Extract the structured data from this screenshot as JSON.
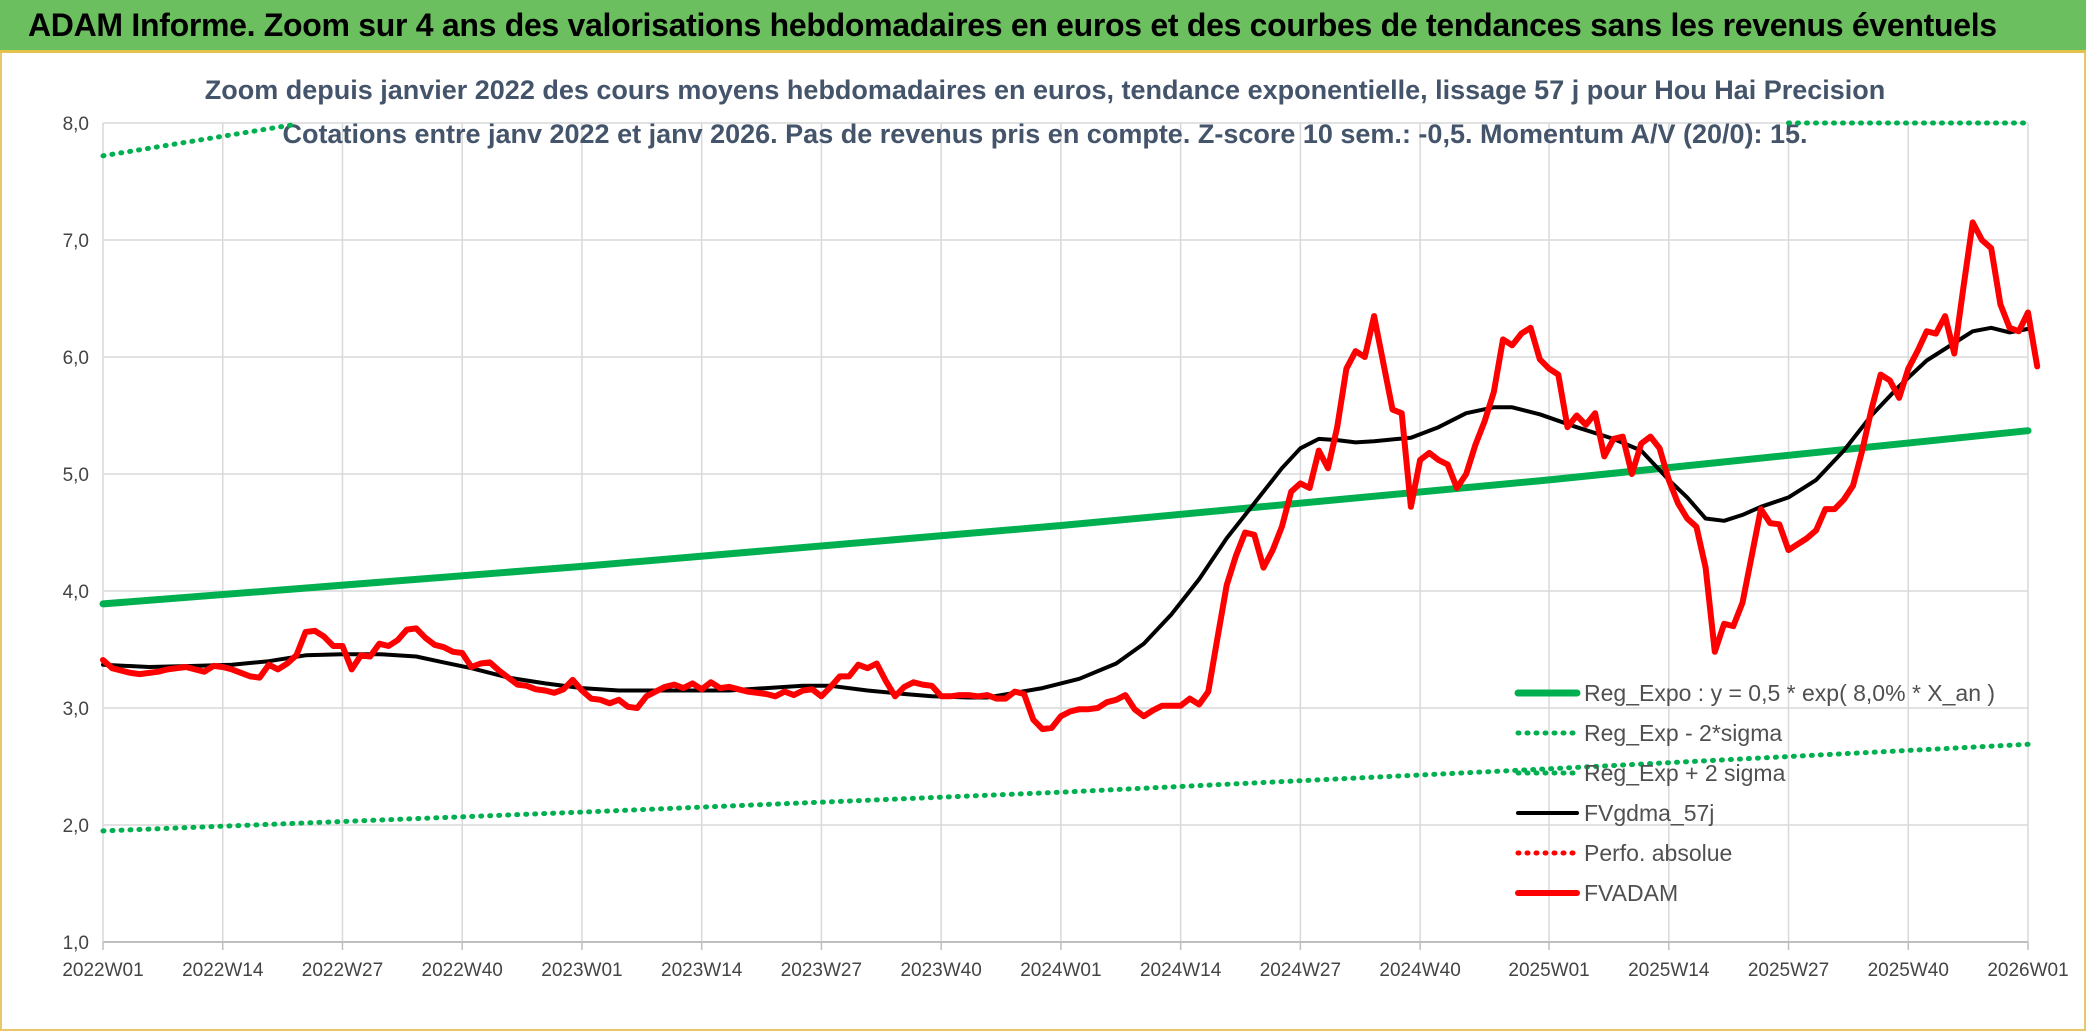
{
  "banner": {
    "title": "ADAM Informe. Zoom sur 4 ans des valorisations hebdomadaires en euros et des courbes de tendances sans les revenus éventuels"
  },
  "colors": {
    "green": "#00b050",
    "red": "#ff0000",
    "black": "#000000",
    "grid": "#d9d9d9",
    "banner": "#6bbf5e"
  },
  "chart_data": {
    "type": "line",
    "title": "Zoom depuis janvier 2022 des cours moyens hebdomadaires en euros, tendance exponentielle, lissage 57 j pour Hou Hai Precision",
    "subtitle": "Cotations entre janv 2022 et janv 2026. Pas de revenus pris en compte. Z-score 10 sem.: -0,5. Momentum A/V (20/0): 15.",
    "xlabel": "",
    "ylabel": "",
    "ylim": [
      1.0,
      8.0
    ],
    "y_ticks": [
      "1,0",
      "2,0",
      "3,0",
      "4,0",
      "5,0",
      "6,0",
      "7,0",
      "8,0"
    ],
    "x_range": [
      0,
      209
    ],
    "x_ticks": [
      {
        "week": 0,
        "label": "2022W01"
      },
      {
        "week": 13,
        "label": "2022W14"
      },
      {
        "week": 26,
        "label": "2022W27"
      },
      {
        "week": 39,
        "label": "2022W40"
      },
      {
        "week": 52,
        "label": "2023W01"
      },
      {
        "week": 65,
        "label": "2023W14"
      },
      {
        "week": 78,
        "label": "2023W27"
      },
      {
        "week": 91,
        "label": "2023W40"
      },
      {
        "week": 104,
        "label": "2024W01"
      },
      {
        "week": 117,
        "label": "2024W14"
      },
      {
        "week": 130,
        "label": "2024W27"
      },
      {
        "week": 143,
        "label": "2024W40"
      },
      {
        "week": 157,
        "label": "2025W01"
      },
      {
        "week": 170,
        "label": "2025W14"
      },
      {
        "week": 183,
        "label": "2025W27"
      },
      {
        "week": 196,
        "label": "2025W40"
      },
      {
        "week": 209,
        "label": "2026W01"
      }
    ],
    "series": [
      {
        "name": "Reg_Expo : y = 0,5 * exp( 8,0% *  X_an )",
        "style": "solid-green",
        "points": [
          [
            0,
            3.89
          ],
          [
            52,
            4.21
          ],
          [
            104,
            4.56
          ],
          [
            157,
            4.95
          ],
          [
            209,
            5.37
          ]
        ]
      },
      {
        "name": "Reg_Exp - 2*sigma",
        "style": "dotted-green",
        "points": [
          [
            0,
            1.95
          ],
          [
            52,
            2.11
          ],
          [
            104,
            2.28
          ],
          [
            157,
            2.48
          ],
          [
            209,
            2.69
          ]
        ]
      },
      {
        "name": "Reg_Exp + 2 sigma",
        "style": "dotted-green",
        "segments": [
          [
            [
              0,
              7.72
            ],
            [
              21,
              7.99
            ]
          ],
          [
            [
              183,
              8.0
            ],
            [
              209,
              8.0
            ]
          ]
        ]
      },
      {
        "name": "FVgdma_57j",
        "style": "solid-black",
        "points": [
          [
            0,
            3.37
          ],
          [
            5,
            3.35
          ],
          [
            10,
            3.36
          ],
          [
            14,
            3.37
          ],
          [
            18,
            3.4
          ],
          [
            22,
            3.45
          ],
          [
            26,
            3.46
          ],
          [
            30,
            3.46
          ],
          [
            34,
            3.44
          ],
          [
            37,
            3.39
          ],
          [
            40,
            3.34
          ],
          [
            44,
            3.26
          ],
          [
            48,
            3.21
          ],
          [
            52,
            3.17
          ],
          [
            56,
            3.15
          ],
          [
            62,
            3.15
          ],
          [
            68,
            3.15
          ],
          [
            72,
            3.17
          ],
          [
            76,
            3.19
          ],
          [
            79,
            3.19
          ],
          [
            83,
            3.15
          ],
          [
            87,
            3.12
          ],
          [
            90,
            3.1
          ],
          [
            94,
            3.09
          ],
          [
            96,
            3.09
          ],
          [
            99,
            3.13
          ],
          [
            102,
            3.17
          ],
          [
            106,
            3.25
          ],
          [
            110,
            3.38
          ],
          [
            113,
            3.55
          ],
          [
            116,
            3.8
          ],
          [
            119,
            4.1
          ],
          [
            122,
            4.45
          ],
          [
            125,
            4.75
          ],
          [
            128,
            5.05
          ],
          [
            130,
            5.22
          ],
          [
            132,
            5.3
          ],
          [
            134,
            5.29
          ],
          [
            136,
            5.27
          ],
          [
            138,
            5.28
          ],
          [
            142,
            5.31
          ],
          [
            145,
            5.4
          ],
          [
            148,
            5.52
          ],
          [
            151,
            5.57
          ],
          [
            153,
            5.57
          ],
          [
            156,
            5.51
          ],
          [
            160,
            5.4
          ],
          [
            164,
            5.3
          ],
          [
            167,
            5.2
          ],
          [
            170,
            4.95
          ],
          [
            172,
            4.8
          ],
          [
            174,
            4.62
          ],
          [
            176,
            4.6
          ],
          [
            178,
            4.65
          ],
          [
            180,
            4.72
          ],
          [
            183,
            4.8
          ],
          [
            186,
            4.95
          ],
          [
            189,
            5.2
          ],
          [
            192,
            5.5
          ],
          [
            195,
            5.75
          ],
          [
            198,
            5.97
          ],
          [
            201,
            6.12
          ],
          [
            203,
            6.22
          ],
          [
            205,
            6.25
          ],
          [
            207,
            6.21
          ],
          [
            209,
            6.24
          ]
        ]
      },
      {
        "name": "Perfo. absolue",
        "style": "dotted-red",
        "points": []
      },
      {
        "name": "FVADAM",
        "style": "solid-red",
        "points": [
          [
            0,
            3.41
          ],
          [
            1,
            3.34
          ],
          [
            2,
            3.32
          ],
          [
            3,
            3.3
          ],
          [
            4,
            3.29
          ],
          [
            5,
            3.3
          ],
          [
            6,
            3.31
          ],
          [
            7,
            3.33
          ],
          [
            8,
            3.34
          ],
          [
            9,
            3.35
          ],
          [
            10,
            3.33
          ],
          [
            11,
            3.31
          ],
          [
            12,
            3.36
          ],
          [
            13,
            3.35
          ],
          [
            14,
            3.33
          ],
          [
            15,
            3.3
          ],
          [
            16,
            3.27
          ],
          [
            17,
            3.26
          ],
          [
            18,
            3.37
          ],
          [
            19,
            3.33
          ],
          [
            20,
            3.38
          ],
          [
            21,
            3.45
          ],
          [
            22,
            3.65
          ],
          [
            23,
            3.66
          ],
          [
            24,
            3.61
          ],
          [
            25,
            3.53
          ],
          [
            26,
            3.53
          ],
          [
            27,
            3.33
          ],
          [
            28,
            3.45
          ],
          [
            29,
            3.44
          ],
          [
            30,
            3.55
          ],
          [
            31,
            3.53
          ],
          [
            32,
            3.58
          ],
          [
            33,
            3.67
          ],
          [
            34,
            3.68
          ],
          [
            35,
            3.6
          ],
          [
            36,
            3.54
          ],
          [
            37,
            3.52
          ],
          [
            38,
            3.48
          ],
          [
            39,
            3.47
          ],
          [
            40,
            3.35
          ],
          [
            41,
            3.38
          ],
          [
            42,
            3.39
          ],
          [
            43,
            3.32
          ],
          [
            44,
            3.26
          ],
          [
            45,
            3.2
          ],
          [
            46,
            3.19
          ],
          [
            47,
            3.16
          ],
          [
            48,
            3.15
          ],
          [
            49,
            3.13
          ],
          [
            50,
            3.16
          ],
          [
            51,
            3.24
          ],
          [
            52,
            3.15
          ],
          [
            53,
            3.08
          ],
          [
            54,
            3.07
          ],
          [
            55,
            3.04
          ],
          [
            56,
            3.07
          ],
          [
            57,
            3.01
          ],
          [
            58,
            3.0
          ],
          [
            59,
            3.1
          ],
          [
            60,
            3.14
          ],
          [
            61,
            3.18
          ],
          [
            62,
            3.2
          ],
          [
            63,
            3.17
          ],
          [
            64,
            3.21
          ],
          [
            65,
            3.16
          ],
          [
            66,
            3.22
          ],
          [
            67,
            3.17
          ],
          [
            68,
            3.18
          ],
          [
            69,
            3.16
          ],
          [
            70,
            3.14
          ],
          [
            71,
            3.13
          ],
          [
            72,
            3.12
          ],
          [
            73,
            3.1
          ],
          [
            74,
            3.14
          ],
          [
            75,
            3.11
          ],
          [
            76,
            3.15
          ],
          [
            77,
            3.16
          ],
          [
            78,
            3.1
          ],
          [
            79,
            3.18
          ],
          [
            80,
            3.27
          ],
          [
            81,
            3.27
          ],
          [
            82,
            3.37
          ],
          [
            83,
            3.34
          ],
          [
            84,
            3.38
          ],
          [
            85,
            3.23
          ],
          [
            86,
            3.1
          ],
          [
            87,
            3.18
          ],
          [
            88,
            3.22
          ],
          [
            89,
            3.2
          ],
          [
            90,
            3.19
          ],
          [
            91,
            3.1
          ],
          [
            92,
            3.1
          ],
          [
            93,
            3.11
          ],
          [
            94,
            3.11
          ],
          [
            95,
            3.1
          ],
          [
            96,
            3.11
          ],
          [
            97,
            3.08
          ],
          [
            98,
            3.08
          ],
          [
            99,
            3.14
          ],
          [
            100,
            3.12
          ],
          [
            101,
            2.9
          ],
          [
            102,
            2.82
          ],
          [
            103,
            2.83
          ],
          [
            104,
            2.93
          ],
          [
            105,
            2.97
          ],
          [
            106,
            2.99
          ],
          [
            107,
            2.99
          ],
          [
            108,
            3.0
          ],
          [
            109,
            3.05
          ],
          [
            110,
            3.07
          ],
          [
            111,
            3.11
          ],
          [
            112,
            2.99
          ],
          [
            113,
            2.93
          ],
          [
            114,
            2.98
          ],
          [
            115,
            3.02
          ],
          [
            116,
            3.02
          ],
          [
            117,
            3.02
          ],
          [
            118,
            3.08
          ],
          [
            119,
            3.03
          ],
          [
            120,
            3.14
          ],
          [
            121,
            3.6
          ],
          [
            122,
            4.05
          ],
          [
            123,
            4.3
          ],
          [
            124,
            4.5
          ],
          [
            125,
            4.48
          ],
          [
            126,
            4.2
          ],
          [
            127,
            4.35
          ],
          [
            128,
            4.55
          ],
          [
            129,
            4.85
          ],
          [
            130,
            4.92
          ],
          [
            131,
            4.88
          ],
          [
            132,
            5.2
          ],
          [
            133,
            5.05
          ],
          [
            134,
            5.4
          ],
          [
            135,
            5.9
          ],
          [
            136,
            6.05
          ],
          [
            137,
            6.0
          ],
          [
            138,
            6.35
          ],
          [
            139,
            5.95
          ],
          [
            140,
            5.55
          ],
          [
            141,
            5.52
          ],
          [
            142,
            4.72
          ],
          [
            143,
            5.12
          ],
          [
            144,
            5.18
          ],
          [
            145,
            5.12
          ],
          [
            146,
            5.08
          ],
          [
            147,
            4.88
          ],
          [
            148,
            5.0
          ],
          [
            149,
            5.25
          ],
          [
            150,
            5.45
          ],
          [
            151,
            5.7
          ],
          [
            152,
            6.15
          ],
          [
            153,
            6.1
          ],
          [
            154,
            6.2
          ],
          [
            155,
            6.25
          ],
          [
            156,
            5.98
          ],
          [
            157,
            5.9
          ],
          [
            158,
            5.85
          ],
          [
            159,
            5.4
          ],
          [
            160,
            5.5
          ],
          [
            161,
            5.42
          ],
          [
            162,
            5.52
          ],
          [
            163,
            5.15
          ],
          [
            164,
            5.3
          ],
          [
            165,
            5.32
          ],
          [
            166,
            5.0
          ],
          [
            167,
            5.26
          ],
          [
            168,
            5.32
          ],
          [
            169,
            5.22
          ],
          [
            170,
            4.95
          ],
          [
            171,
            4.75
          ],
          [
            172,
            4.62
          ],
          [
            173,
            4.55
          ],
          [
            174,
            4.2
          ],
          [
            175,
            3.48
          ],
          [
            176,
            3.72
          ],
          [
            177,
            3.7
          ],
          [
            178,
            3.9
          ],
          [
            179,
            4.3
          ],
          [
            180,
            4.7
          ],
          [
            181,
            4.58
          ],
          [
            182,
            4.57
          ],
          [
            183,
            4.35
          ],
          [
            184,
            4.4
          ],
          [
            185,
            4.45
          ],
          [
            186,
            4.52
          ],
          [
            187,
            4.7
          ],
          [
            188,
            4.7
          ],
          [
            189,
            4.78
          ],
          [
            190,
            4.9
          ],
          [
            191,
            5.2
          ],
          [
            192,
            5.55
          ],
          [
            193,
            5.85
          ],
          [
            194,
            5.8
          ],
          [
            195,
            5.65
          ],
          [
            196,
            5.9
          ],
          [
            197,
            6.05
          ],
          [
            198,
            6.22
          ],
          [
            199,
            6.2
          ],
          [
            200,
            6.35
          ],
          [
            201,
            6.03
          ],
          [
            202,
            6.6
          ],
          [
            203,
            7.15
          ],
          [
            204,
            7.0
          ],
          [
            205,
            6.93
          ],
          [
            206,
            6.45
          ],
          [
            207,
            6.25
          ],
          [
            208,
            6.22
          ],
          [
            209,
            6.38
          ],
          [
            210,
            5.92
          ]
        ]
      }
    ],
    "legend": {
      "position": "bottom-right",
      "entries": [
        "Reg_Expo : y = 0,5 * exp( 8,0% *  X_an )",
        "Reg_Exp - 2*sigma",
        "Reg_Exp + 2 sigma",
        "FVgdma_57j",
        "Perfo. absolue",
        "FVADAM"
      ]
    }
  }
}
